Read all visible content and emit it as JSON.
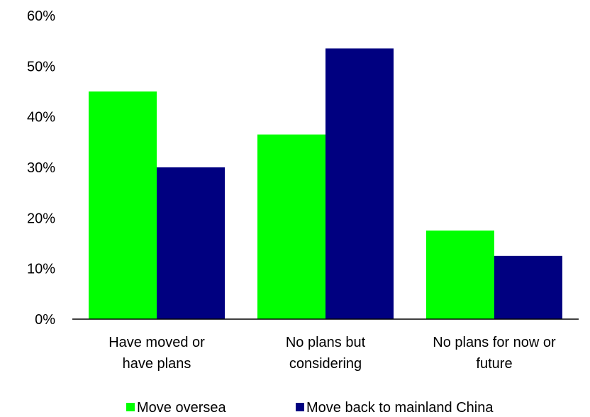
{
  "chart_data": {
    "type": "bar",
    "title": "",
    "xlabel": "",
    "ylabel": "",
    "categories": [
      [
        "Have moved or",
        "have plans"
      ],
      [
        "No plans but",
        "considering"
      ],
      [
        "No plans for now or",
        "future"
      ]
    ],
    "series": [
      {
        "name": "Move oversea",
        "color": "#00ff00",
        "values": [
          45,
          36.5,
          17.5
        ]
      },
      {
        "name": "Move back to mainland China",
        "color": "#000080",
        "values": [
          30,
          53.5,
          12.5
        ]
      }
    ],
    "ylim": [
      0,
      60
    ],
    "yticks": [
      0,
      10,
      20,
      30,
      40,
      50,
      60
    ],
    "ytick_format": "percent",
    "grid": false,
    "legend": "bottom"
  }
}
